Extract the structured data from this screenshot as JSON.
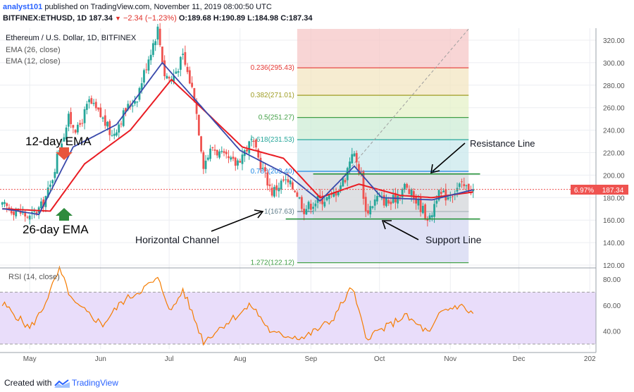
{
  "header": {
    "author": "analyst101",
    "published": "published on TradingView.com, November 11, 2019 08:00:50 UTC",
    "symbol": "BITFINEX:ETHUSD, 1D",
    "last": "187.34",
    "change": "−2.34 (−1.23%)",
    "open": "O:189.68",
    "high": "H:190.89",
    "low": "L:184.98",
    "close": "C:187.34"
  },
  "legend": {
    "title": "Ethereum / U.S. Dollar, 1D, BITFINEX",
    "ema26": "EMA (26, close)",
    "ema12": "EMA (12, close)",
    "rsi": "RSI (14, close)"
  },
  "annotations": {
    "ema12": "12-day EMA",
    "ema26": "26-day EMA",
    "resistance": "Resistance Line",
    "horizontal": "Horizontal Channel",
    "support": "Support Line"
  },
  "price_tags": {
    "pct": "6.97%",
    "last": "187.34"
  },
  "footer": {
    "created": "Created with",
    "brand": "TradingView"
  },
  "colors": {
    "up": "#26a69a",
    "down": "#ef5350",
    "ema26": "#e91c23",
    "ema12": "#3949ab",
    "rsi": "#f57c00",
    "rsi_band": "#e9ddfa",
    "level_line": "#1b8e2f",
    "grid": "#eceef2"
  },
  "chart_data": [
    {
      "type": "candlestick",
      "title": "Ethereum / U.S. Dollar, 1D, BITFINEX",
      "x_ticks": [
        "May",
        "Jun",
        "Jul",
        "Aug",
        "Sep",
        "Oct",
        "Nov",
        "Dec",
        "202"
      ],
      "y_ticks": [
        "320.00",
        "300.00",
        "280.00",
        "260.00",
        "240.00",
        "220.00",
        "200.00",
        "180.00",
        "160.00",
        "140.00",
        "120.00"
      ],
      "ylim": [
        120,
        330
      ],
      "close_anchors": [
        {
          "date": "2019-04-20",
          "close": 172
        },
        {
          "date": "2019-04-26",
          "close": 168
        },
        {
          "date": "2019-05-01",
          "close": 162
        },
        {
          "date": "2019-05-06",
          "close": 172
        },
        {
          "date": "2019-05-10",
          "close": 190
        },
        {
          "date": "2019-05-14",
          "close": 225
        },
        {
          "date": "2019-05-18",
          "close": 250
        },
        {
          "date": "2019-05-22",
          "close": 240
        },
        {
          "date": "2019-05-27",
          "close": 265
        },
        {
          "date": "2019-06-02",
          "close": 250
        },
        {
          "date": "2019-06-06",
          "close": 235
        },
        {
          "date": "2019-06-12",
          "close": 258
        },
        {
          "date": "2019-06-17",
          "close": 270
        },
        {
          "date": "2019-06-22",
          "close": 305
        },
        {
          "date": "2019-06-26",
          "close": 330
        },
        {
          "date": "2019-06-29",
          "close": 290
        },
        {
          "date": "2019-07-02",
          "close": 285
        },
        {
          "date": "2019-07-07",
          "close": 305
        },
        {
          "date": "2019-07-12",
          "close": 270
        },
        {
          "date": "2019-07-16",
          "close": 210
        },
        {
          "date": "2019-07-20",
          "close": 225
        },
        {
          "date": "2019-07-25",
          "close": 215
        },
        {
          "date": "2019-07-30",
          "close": 210
        },
        {
          "date": "2019-08-06",
          "close": 230
        },
        {
          "date": "2019-08-10",
          "close": 210
        },
        {
          "date": "2019-08-15",
          "close": 185
        },
        {
          "date": "2019-08-20",
          "close": 195
        },
        {
          "date": "2019-08-25",
          "close": 188
        },
        {
          "date": "2019-08-29",
          "close": 170
        },
        {
          "date": "2019-09-04",
          "close": 178
        },
        {
          "date": "2019-09-10",
          "close": 180
        },
        {
          "date": "2019-09-16",
          "close": 198
        },
        {
          "date": "2019-09-19",
          "close": 222
        },
        {
          "date": "2019-09-23",
          "close": 200
        },
        {
          "date": "2019-09-25",
          "close": 167
        },
        {
          "date": "2019-09-30",
          "close": 180
        },
        {
          "date": "2019-10-06",
          "close": 175
        },
        {
          "date": "2019-10-12",
          "close": 190
        },
        {
          "date": "2019-10-18",
          "close": 175
        },
        {
          "date": "2019-10-23",
          "close": 160
        },
        {
          "date": "2019-10-26",
          "close": 182
        },
        {
          "date": "2019-10-31",
          "close": 182
        },
        {
          "date": "2019-11-05",
          "close": 190
        },
        {
          "date": "2019-11-11",
          "close": 187.34
        }
      ],
      "ema26_anchors": [
        {
          "date": "2019-04-20",
          "value": 170
        },
        {
          "date": "2019-05-10",
          "value": 168
        },
        {
          "date": "2019-05-25",
          "value": 210
        },
        {
          "date": "2019-06-14",
          "value": 240
        },
        {
          "date": "2019-07-02",
          "value": 285
        },
        {
          "date": "2019-07-14",
          "value": 262
        },
        {
          "date": "2019-08-02",
          "value": 225
        },
        {
          "date": "2019-08-20",
          "value": 215
        },
        {
          "date": "2019-09-05",
          "value": 180
        },
        {
          "date": "2019-09-22",
          "value": 192
        },
        {
          "date": "2019-10-10",
          "value": 182
        },
        {
          "date": "2019-10-24",
          "value": 180
        },
        {
          "date": "2019-11-11",
          "value": 185
        }
      ],
      "ema12_anchors": [
        {
          "date": "2019-04-20",
          "value": 170
        },
        {
          "date": "2019-05-05",
          "value": 165
        },
        {
          "date": "2019-05-20",
          "value": 225
        },
        {
          "date": "2019-06-08",
          "value": 245
        },
        {
          "date": "2019-06-28",
          "value": 300
        },
        {
          "date": "2019-07-12",
          "value": 268
        },
        {
          "date": "2019-08-01",
          "value": 222
        },
        {
          "date": "2019-08-22",
          "value": 200
        },
        {
          "date": "2019-09-05",
          "value": 177
        },
        {
          "date": "2019-09-20",
          "value": 208
        },
        {
          "date": "2019-10-02",
          "value": 180
        },
        {
          "date": "2019-10-24",
          "value": 178
        },
        {
          "date": "2019-11-11",
          "value": 187
        }
      ],
      "fibonacci": [
        {
          "ratio": "0.236",
          "price": 295.43,
          "label": "0.236(295.43)"
        },
        {
          "ratio": "0.382",
          "price": 271.01,
          "label": "0.382(271.01)"
        },
        {
          "ratio": "0.5",
          "price": 251.27,
          "label": "0.5(251.27)"
        },
        {
          "ratio": "0.618",
          "price": 231.53,
          "label": "0.618(231.53)"
        },
        {
          "ratio": "0.786",
          "price": 203.4,
          "label": "0.786(203.40)"
        },
        {
          "ratio": "1",
          "price": 167.63,
          "label": "1(167.63)"
        },
        {
          "ratio": "1.272",
          "price": 122.12,
          "label": "1.272(122.12)"
        }
      ],
      "resistance_line": 201,
      "support_line": 161,
      "last_price": 187.34
    },
    {
      "type": "line",
      "title": "RSI (14, close)",
      "y_ticks": [
        "80.00",
        "60.00",
        "40.00"
      ],
      "ylim": [
        25,
        90
      ],
      "band": [
        30,
        70
      ],
      "anchors": [
        {
          "date": "2019-04-20",
          "value": 60
        },
        {
          "date": "2019-05-01",
          "value": 42
        },
        {
          "date": "2019-05-06",
          "value": 55
        },
        {
          "date": "2019-05-14",
          "value": 87
        },
        {
          "date": "2019-05-20",
          "value": 62
        },
        {
          "date": "2019-06-02",
          "value": 45
        },
        {
          "date": "2019-06-10",
          "value": 62
        },
        {
          "date": "2019-06-26",
          "value": 80
        },
        {
          "date": "2019-07-02",
          "value": 55
        },
        {
          "date": "2019-07-07",
          "value": 72
        },
        {
          "date": "2019-07-16",
          "value": 32
        },
        {
          "date": "2019-07-25",
          "value": 45
        },
        {
          "date": "2019-08-06",
          "value": 60
        },
        {
          "date": "2019-08-15",
          "value": 38
        },
        {
          "date": "2019-08-29",
          "value": 35
        },
        {
          "date": "2019-09-10",
          "value": 48
        },
        {
          "date": "2019-09-19",
          "value": 74
        },
        {
          "date": "2019-09-25",
          "value": 35
        },
        {
          "date": "2019-10-06",
          "value": 45
        },
        {
          "date": "2019-10-12",
          "value": 52
        },
        {
          "date": "2019-10-23",
          "value": 38
        },
        {
          "date": "2019-10-28",
          "value": 55
        },
        {
          "date": "2019-11-05",
          "value": 60
        },
        {
          "date": "2019-11-11",
          "value": 53
        }
      ]
    }
  ]
}
